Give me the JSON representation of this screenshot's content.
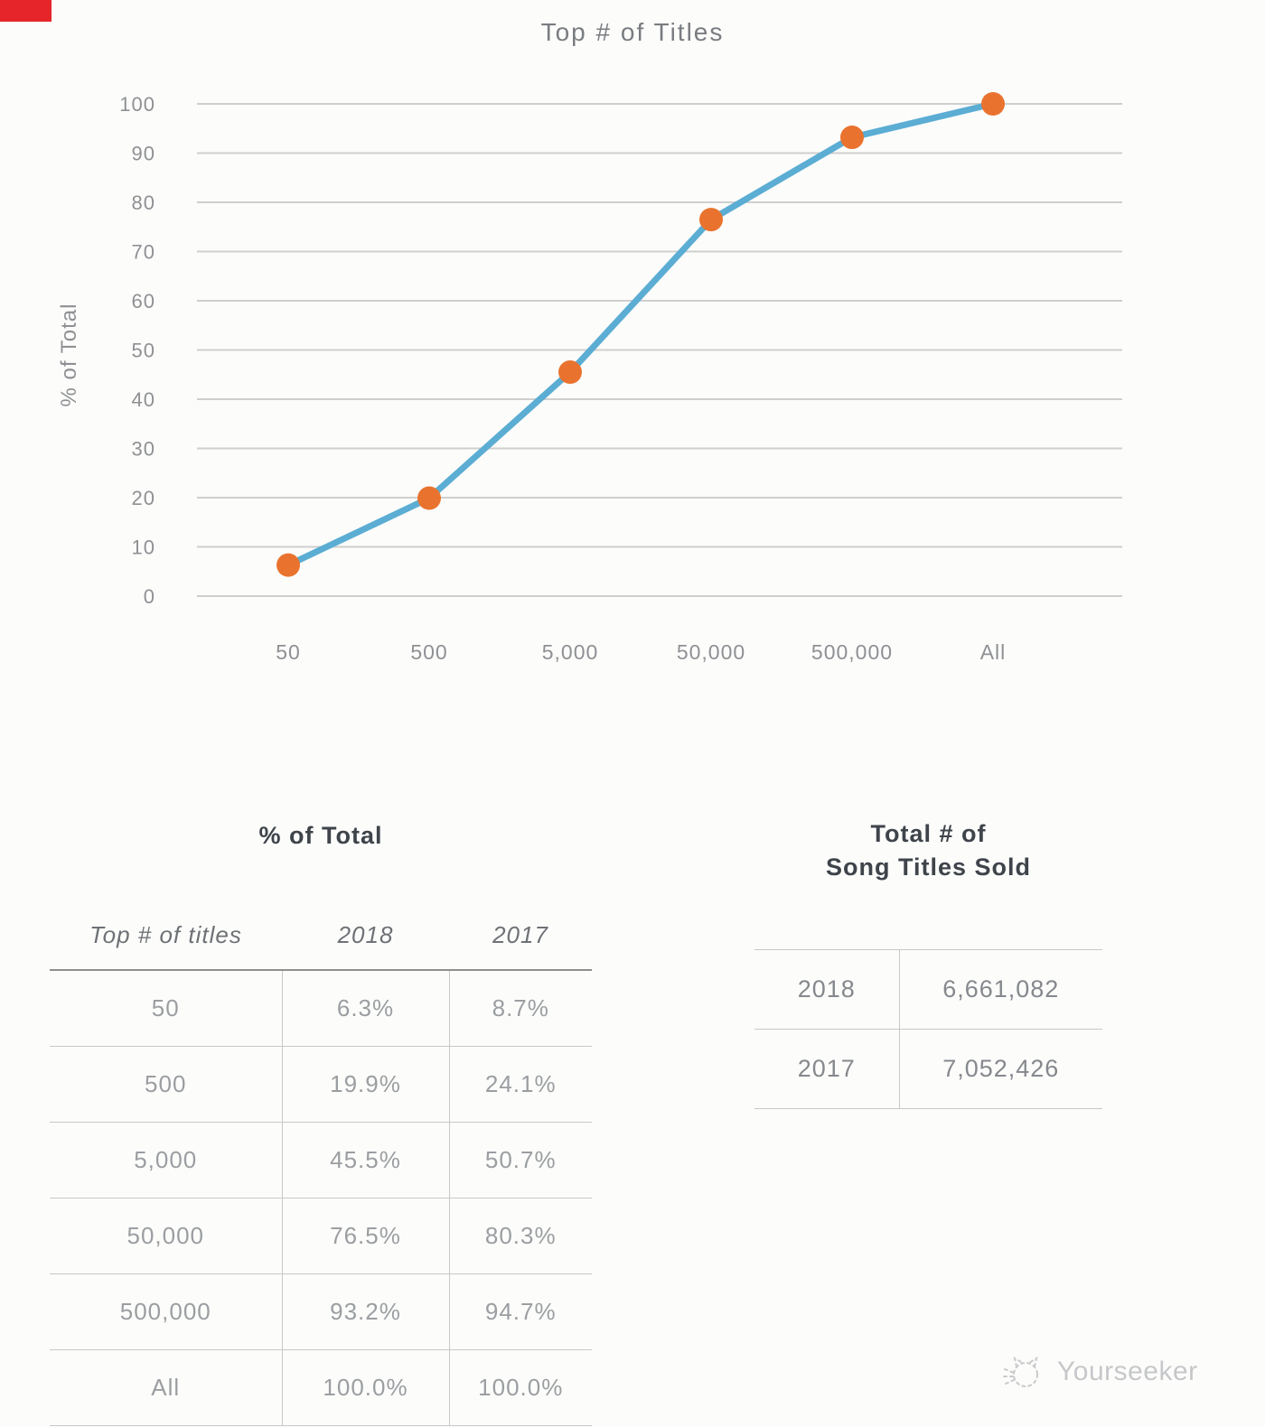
{
  "page": {
    "background": "#fcfcfb",
    "corner_mark_color": "#e5252a"
  },
  "chart_style": {
    "line_color": "#5badd3",
    "marker_color": "#e9732e",
    "grid_color": "#cfcfcf",
    "tick_color": "#8e9093",
    "title_color": "#797c80"
  },
  "chart_data": {
    "type": "line",
    "title": "Top # of Titles",
    "xlabel": "",
    "ylabel": "% of Total",
    "categories": [
      "50",
      "500",
      "5,000",
      "50,000",
      "500,000",
      "All"
    ],
    "series": [
      {
        "name": "2018",
        "values": [
          6.3,
          19.9,
          45.5,
          76.5,
          93.2,
          100.0
        ]
      }
    ],
    "ylim": [
      0,
      100
    ],
    "yticks": [
      0,
      10,
      20,
      30,
      40,
      50,
      60,
      70,
      80,
      90,
      100
    ],
    "grid": true,
    "legend": false
  },
  "left_table": {
    "title": "% of Total",
    "columns": [
      "Top # of titles",
      "2018",
      "2017"
    ],
    "rows": [
      [
        "50",
        "6.3%",
        "8.7%"
      ],
      [
        "500",
        "19.9%",
        "24.1%"
      ],
      [
        "5,000",
        "45.5%",
        "50.7%"
      ],
      [
        "50,000",
        "76.5%",
        "80.3%"
      ],
      [
        "500,000",
        "93.2%",
        "94.7%"
      ],
      [
        "All",
        "100.0%",
        "100.0%"
      ]
    ]
  },
  "right_table": {
    "title_line1": "Total # of",
    "title_line2": "Song Titles Sold",
    "rows": [
      [
        "2018",
        "6,661,082"
      ],
      [
        "2017",
        "7,052,426"
      ]
    ]
  },
  "watermark": {
    "text": "Yourseeker"
  }
}
